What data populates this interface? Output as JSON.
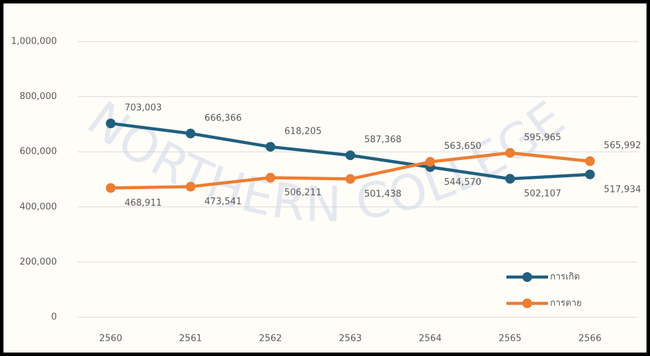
{
  "chart_data": {
    "type": "line",
    "watermark": "NORTHERN COLLEGE",
    "categories": [
      "2560",
      "2561",
      "2562",
      "2563",
      "2564",
      "2565",
      "2566"
    ],
    "series": [
      {
        "name": "การเกิด",
        "color": "#215f7e",
        "values": [
          703003,
          666366,
          618205,
          587368,
          544570,
          502107,
          517934
        ],
        "value_labels": [
          "703,003",
          "666,366",
          "618,205",
          "587,368",
          "544,570",
          "502,107",
          "517,934"
        ]
      },
      {
        "name": "การตาย",
        "color": "#ed7d31",
        "values": [
          468911,
          473541,
          506211,
          501438,
          563650,
          595965,
          565992
        ],
        "value_labels": [
          "468,911",
          "473,541",
          "506,211",
          "501,438",
          "563,650",
          "595,965",
          "565,992"
        ]
      }
    ],
    "ylim": [
      0,
      1000000
    ],
    "yticks": [
      0,
      {
        "value": 200000,
        "label": "200,000"
      },
      {
        "value": 400000,
        "label": "400,000"
      },
      {
        "value": 600000,
        "label": "600,000"
      },
      {
        "value": 800000,
        "label": "800,000"
      },
      {
        "value": 1000000,
        "label": "1,000,000"
      }
    ],
    "grid": true,
    "legend": "lower right"
  }
}
